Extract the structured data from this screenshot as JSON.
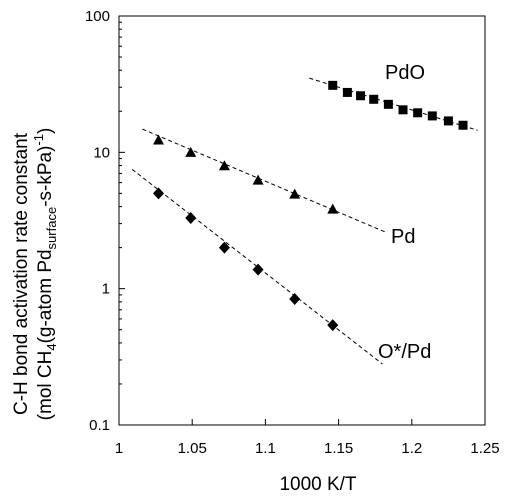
{
  "chart_data": {
    "type": "scatter",
    "x_axis": {
      "label": "1000 K/T",
      "range": [
        1,
        1.25
      ],
      "ticks": [
        "1",
        "1.05",
        "1.1",
        "1.15",
        "1.2",
        "1.25"
      ]
    },
    "y_axis": {
      "label_line1": "C-H bond activation rate constant",
      "label_line2_prefix": "(mol CH",
      "label_line2_sub1": "4",
      "label_line2_mid": "(g-atom Pd",
      "label_line2_sub2": "surface",
      "label_line2_suffix": "-s-kPa)",
      "label_line2_sup": "-1",
      "label_line2_end": ")",
      "scale": "log",
      "range": [
        0.1,
        100
      ],
      "ticks": [
        "0.1",
        "1",
        "10",
        "100"
      ]
    },
    "grid": false,
    "series": [
      {
        "name": "PdO",
        "marker": "square",
        "x": [
          1.146,
          1.156,
          1.165,
          1.174,
          1.184,
          1.194,
          1.204,
          1.214,
          1.225,
          1.235
        ],
        "y": [
          31,
          27.5,
          26,
          24.5,
          22.5,
          20.5,
          19.5,
          18.5,
          17,
          15.8
        ],
        "trend": {
          "x": [
            1.13,
            1.245
          ],
          "y": [
            35,
            14.5
          ]
        }
      },
      {
        "name": "Pd",
        "marker": "triangle",
        "x": [
          1.027,
          1.049,
          1.072,
          1.095,
          1.12,
          1.146
        ],
        "y": [
          12.2,
          9.9,
          7.9,
          6.2,
          4.9,
          3.8
        ],
        "trend": {
          "x": [
            1.016,
            1.182
          ],
          "y": [
            14.8,
            2.6
          ]
        }
      },
      {
        "name": "O*/Pd",
        "marker": "diamond",
        "x": [
          1.027,
          1.049,
          1.072,
          1.095,
          1.12,
          1.146
        ],
        "y": [
          5.0,
          3.3,
          2.0,
          1.38,
          0.84,
          0.54
        ],
        "trend": {
          "x": [
            1.009,
            1.18
          ],
          "y": [
            7.5,
            0.28
          ]
        }
      }
    ]
  }
}
